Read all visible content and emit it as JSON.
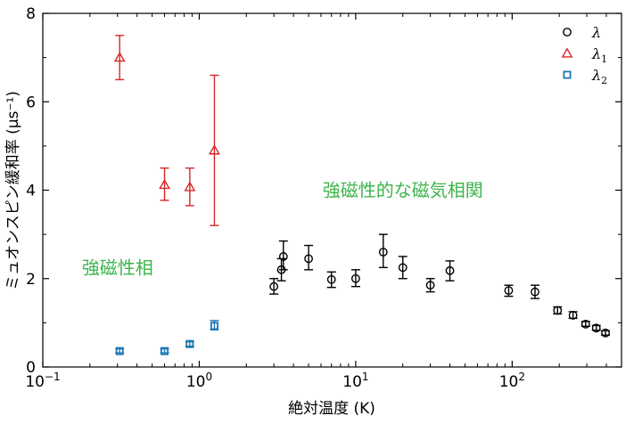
{
  "chart_data": {
    "type": "scatter",
    "x_scale": "log",
    "xlim": [
      0.1,
      500
    ],
    "ylim": [
      0,
      8
    ],
    "xlabel": "絶対温度 (K)",
    "ylabel": "ミュオンスピン緩和率 (μs⁻¹)",
    "x_ticks": [
      {
        "value": 0.1,
        "base": "10",
        "exp": "−1"
      },
      {
        "value": 1,
        "base": "10",
        "exp": "0"
      },
      {
        "value": 10,
        "base": "10",
        "exp": "1"
      },
      {
        "value": 100,
        "base": "10",
        "exp": "2"
      }
    ],
    "y_ticks": [
      0,
      2,
      4,
      6,
      8
    ],
    "grid": false,
    "legend_position": "top-right",
    "series": [
      {
        "name": "λ",
        "name_base": "λ",
        "name_sub": "",
        "marker": "circle",
        "color": "#000000",
        "points": [
          {
            "x": 3.0,
            "y": 1.82,
            "lo": 1.65,
            "hi": 2.0
          },
          {
            "x": 3.35,
            "y": 2.2,
            "lo": 1.95,
            "hi": 2.45
          },
          {
            "x": 3.45,
            "y": 2.5,
            "lo": 2.2,
            "hi": 2.85
          },
          {
            "x": 5.0,
            "y": 2.45,
            "lo": 2.2,
            "hi": 2.75
          },
          {
            "x": 7.0,
            "y": 1.98,
            "lo": 1.8,
            "hi": 2.15
          },
          {
            "x": 10.0,
            "y": 2.0,
            "lo": 1.82,
            "hi": 2.2
          },
          {
            "x": 15.0,
            "y": 2.6,
            "lo": 2.25,
            "hi": 3.0
          },
          {
            "x": 20.0,
            "y": 2.25,
            "lo": 2.0,
            "hi": 2.5
          },
          {
            "x": 30.0,
            "y": 1.85,
            "lo": 1.7,
            "hi": 2.0
          },
          {
            "x": 40.0,
            "y": 2.18,
            "lo": 1.95,
            "hi": 2.4
          },
          {
            "x": 95.0,
            "y": 1.73,
            "lo": 1.6,
            "hi": 1.85
          },
          {
            "x": 140.0,
            "y": 1.7,
            "lo": 1.55,
            "hi": 1.85
          },
          {
            "x": 195.0,
            "y": 1.28,
            "lo": 1.2,
            "hi": 1.36
          },
          {
            "x": 245.0,
            "y": 1.17,
            "lo": 1.1,
            "hi": 1.25
          },
          {
            "x": 295.0,
            "y": 0.97,
            "lo": 0.92,
            "hi": 1.03
          },
          {
            "x": 345.0,
            "y": 0.88,
            "lo": 0.83,
            "hi": 0.94
          },
          {
            "x": 395.0,
            "y": 0.77,
            "lo": 0.72,
            "hi": 0.82
          }
        ]
      },
      {
        "name": "λ1",
        "name_base": "λ",
        "name_sub": "1",
        "marker": "triangle",
        "color": "#d62728",
        "points": [
          {
            "x": 0.31,
            "y": 7.0,
            "lo": 6.5,
            "hi": 7.5
          },
          {
            "x": 0.6,
            "y": 4.12,
            "lo": 3.77,
            "hi": 4.5
          },
          {
            "x": 0.87,
            "y": 4.07,
            "lo": 3.65,
            "hi": 4.5
          },
          {
            "x": 1.25,
            "y": 4.9,
            "lo": 3.2,
            "hi": 6.6
          }
        ]
      },
      {
        "name": "λ2",
        "name_base": "λ",
        "name_sub": "2",
        "marker": "square",
        "color": "#1f77b4",
        "points": [
          {
            "x": 0.31,
            "y": 0.36,
            "lo": 0.32,
            "hi": 0.41
          },
          {
            "x": 0.6,
            "y": 0.36,
            "lo": 0.32,
            "hi": 0.41
          },
          {
            "x": 0.87,
            "y": 0.52,
            "lo": 0.47,
            "hi": 0.57
          },
          {
            "x": 1.25,
            "y": 0.93,
            "lo": 0.84,
            "hi": 1.05
          }
        ]
      }
    ],
    "annotations": [
      {
        "text": "強磁性的な磁気相関",
        "x": 20,
        "y": 4.0,
        "color": "#3cb44b"
      },
      {
        "text": "強磁性相",
        "x": 0.3,
        "y": 2.25,
        "color": "#3cb44b"
      }
    ]
  }
}
